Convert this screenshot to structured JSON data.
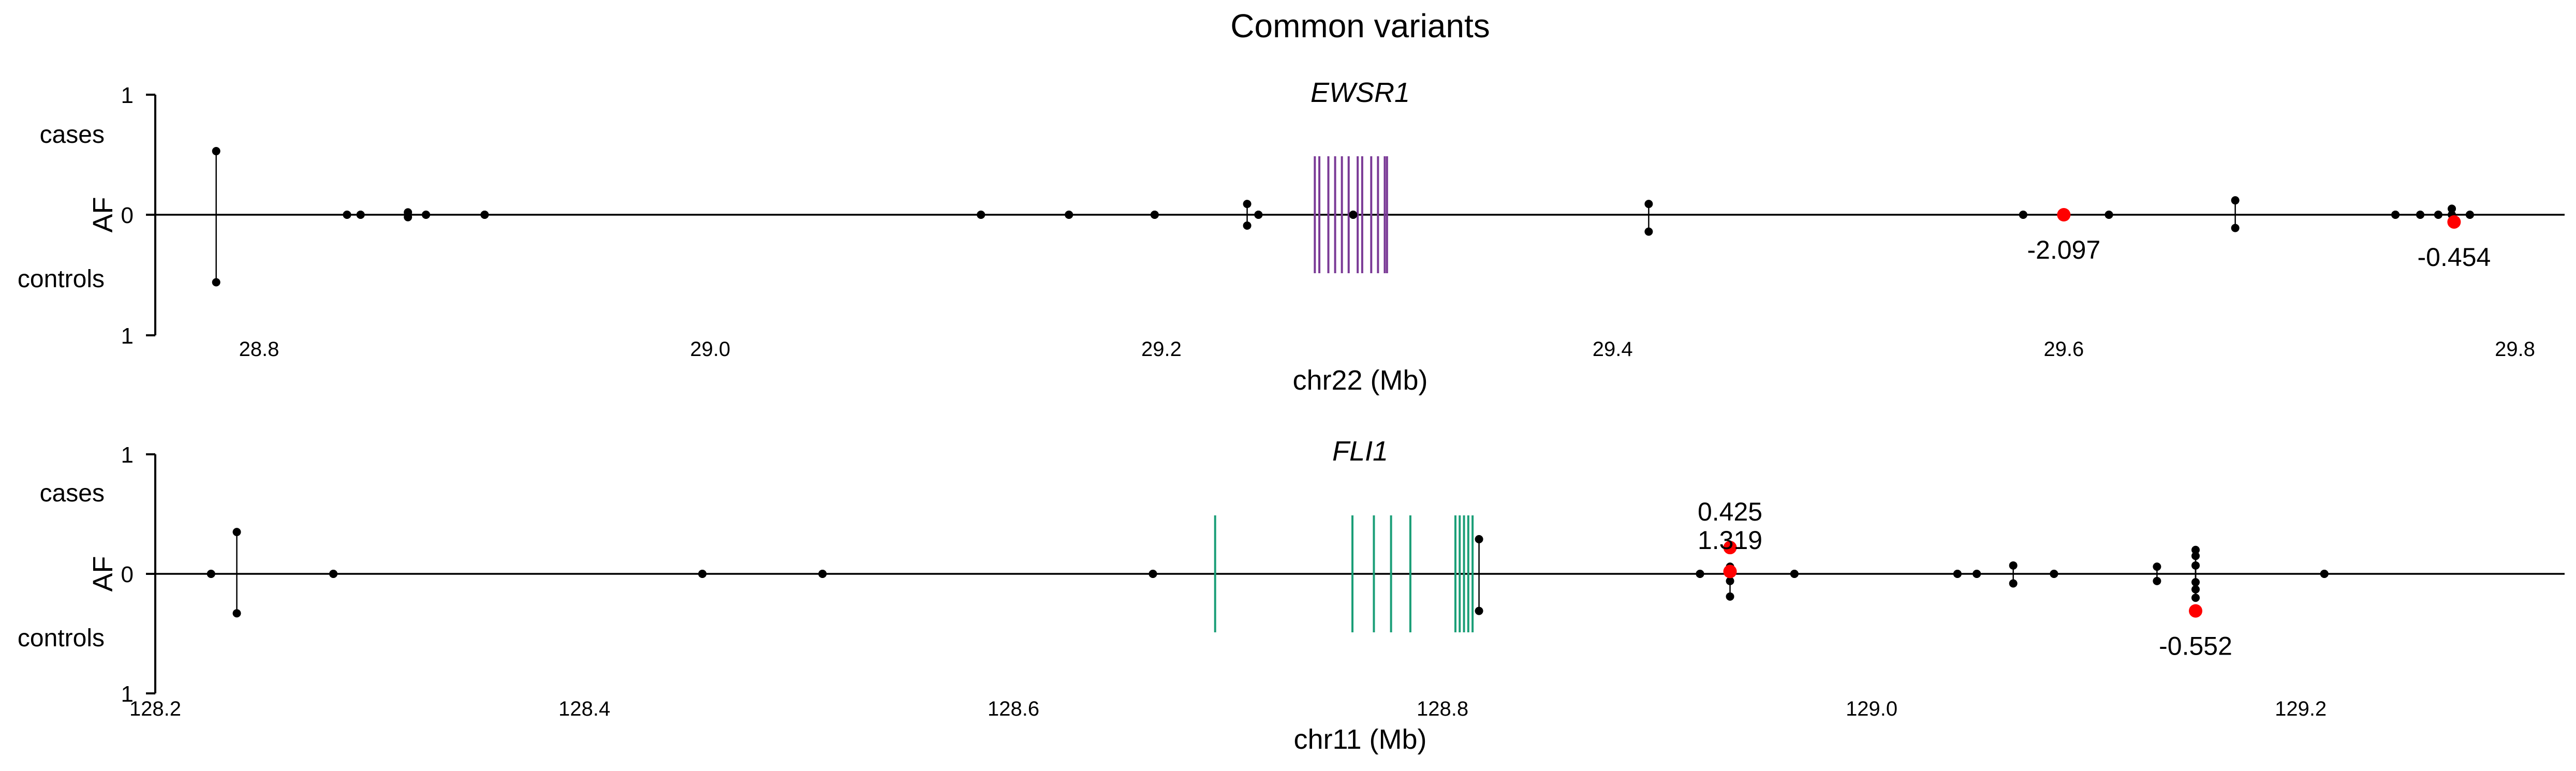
{
  "figure": {
    "title": "Common variants"
  },
  "colors": {
    "axis": "#000000",
    "point": "#000000",
    "highlight": "#ff0000",
    "ewsr1_exon": "#7a3a96",
    "fli1_exon": "#1a9e77"
  },
  "chart_data": [
    {
      "type": "scatter",
      "title": "EWSR1",
      "xlabel": "chr22 (Mb)",
      "ylabel": "AF",
      "upper_label": "cases",
      "lower_label": "controls",
      "y_top_label": "1",
      "y_zero_label": "0",
      "y_bottom_label": "1",
      "xlim": [
        28.754,
        29.822
      ],
      "ylim": [
        -1,
        1
      ],
      "xticks": [
        {
          "value": 28.8,
          "label": "28.8"
        },
        {
          "value": 29.0,
          "label": "29.0"
        },
        {
          "value": 29.2,
          "label": "29.2"
        },
        {
          "value": 29.4,
          "label": "29.4"
        },
        {
          "value": 29.6,
          "label": "29.6"
        },
        {
          "value": 29.8,
          "label": "29.8"
        }
      ],
      "exons": [
        29.268,
        29.27,
        29.274,
        29.277,
        29.28,
        29.283,
        29.287,
        29.289,
        29.293,
        29.296,
        29.299,
        29.3
      ],
      "variants": [
        {
          "x": 28.781,
          "case": 0.53,
          "control": -0.56
        },
        {
          "x": 28.839,
          "case": 0.0,
          "control": 0.0
        },
        {
          "x": 28.845,
          "case": 0.0,
          "control": 0.0
        },
        {
          "x": 28.866,
          "case": 0.02,
          "control": -0.02
        },
        {
          "x": 28.874,
          "case": 0.0,
          "control": 0.0
        },
        {
          "x": 28.9,
          "case": 0.0,
          "control": 0.0
        },
        {
          "x": 29.12,
          "case": 0.0,
          "control": 0.0
        },
        {
          "x": 29.159,
          "case": 0.0,
          "control": 0.0
        },
        {
          "x": 29.197,
          "case": 0.0,
          "control": 0.0
        },
        {
          "x": 29.238,
          "case": 0.09,
          "control": -0.09
        },
        {
          "x": 29.243,
          "case": 0.0,
          "control": 0.0
        },
        {
          "x": 29.285,
          "case": 0.0,
          "control": 0.0
        },
        {
          "x": 29.416,
          "case": 0.09,
          "control": -0.14
        },
        {
          "x": 29.582,
          "case": 0.0,
          "control": 0.0
        },
        {
          "x": 29.62,
          "case": 0.0,
          "control": 0.0
        },
        {
          "x": 29.676,
          "case": 0.12,
          "control": -0.11
        },
        {
          "x": 29.747,
          "case": 0.0,
          "control": 0.0
        },
        {
          "x": 29.758,
          "case": 0.0,
          "control": 0.0
        },
        {
          "x": 29.766,
          "case": 0.0,
          "control": 0.0
        },
        {
          "x": 29.772,
          "case": 0.05,
          "control": 0.0
        },
        {
          "x": 29.78,
          "case": 0.0,
          "control": 0.0
        }
      ],
      "highlights": [
        {
          "x": 29.6,
          "y": 0.0,
          "label": "-2.097",
          "label_pos": "below"
        },
        {
          "x": 29.773,
          "y": -0.06,
          "label": "-0.454",
          "label_pos": "below"
        }
      ]
    },
    {
      "type": "scatter",
      "title": "FLI1",
      "xlabel": "chr11 (Mb)",
      "ylabel": "AF",
      "upper_label": "cases",
      "lower_label": "controls",
      "y_top_label": "1",
      "y_zero_label": "0",
      "y_bottom_label": "1",
      "xlim": [
        128.2,
        129.323
      ],
      "ylim": [
        -1,
        1
      ],
      "xticks": [
        {
          "value": 128.2,
          "label": "128.2"
        },
        {
          "value": 128.4,
          "label": "128.4"
        },
        {
          "value": 128.6,
          "label": "128.6"
        },
        {
          "value": 128.8,
          "label": "128.8"
        },
        {
          "value": 129.0,
          "label": "129.0"
        },
        {
          "value": 129.2,
          "label": "129.2"
        }
      ],
      "exons": [
        128.694,
        128.758,
        128.768,
        128.776,
        128.785,
        128.806,
        128.808,
        128.81,
        128.812,
        128.814
      ],
      "variants": [
        {
          "x": 128.226,
          "case": 0.0,
          "control": 0.0
        },
        {
          "x": 128.238,
          "case": 0.35,
          "control": -0.33
        },
        {
          "x": 128.283,
          "case": 0.0,
          "control": 0.0
        },
        {
          "x": 128.455,
          "case": 0.0,
          "control": 0.0
        },
        {
          "x": 128.511,
          "case": 0.0,
          "control": 0.0
        },
        {
          "x": 128.665,
          "case": 0.0,
          "control": 0.0
        },
        {
          "x": 128.817,
          "case": 0.29,
          "control": -0.31
        },
        {
          "x": 128.92,
          "case": 0.0,
          "control": 0.0
        },
        {
          "x": 128.934,
          "case": 0.0,
          "control": -0.19
        },
        {
          "x": 128.934,
          "case": 0.06,
          "control": -0.06
        },
        {
          "x": 128.964,
          "case": 0.0,
          "control": 0.0
        },
        {
          "x": 129.04,
          "case": 0.0,
          "control": 0.0
        },
        {
          "x": 129.049,
          "case": 0.0,
          "control": 0.0
        },
        {
          "x": 129.066,
          "case": 0.07,
          "control": -0.08
        },
        {
          "x": 129.085,
          "case": 0.0,
          "control": 0.0
        },
        {
          "x": 129.133,
          "case": 0.06,
          "control": -0.06
        },
        {
          "x": 129.151,
          "case": 0.2,
          "control": -0.2
        },
        {
          "x": 129.151,
          "case": 0.15,
          "control": -0.13
        },
        {
          "x": 129.151,
          "case": 0.07,
          "control": -0.07
        },
        {
          "x": 129.211,
          "case": 0.0,
          "control": 0.0
        }
      ],
      "highlights": [
        {
          "x": 128.934,
          "y": 0.22,
          "label": "0.425",
          "label_pos": "above2"
        },
        {
          "x": 128.934,
          "y": 0.02,
          "label": "1.319",
          "label_pos": "above1"
        },
        {
          "x": 129.151,
          "y": -0.31,
          "label": "-0.552",
          "label_pos": "below"
        }
      ]
    }
  ]
}
